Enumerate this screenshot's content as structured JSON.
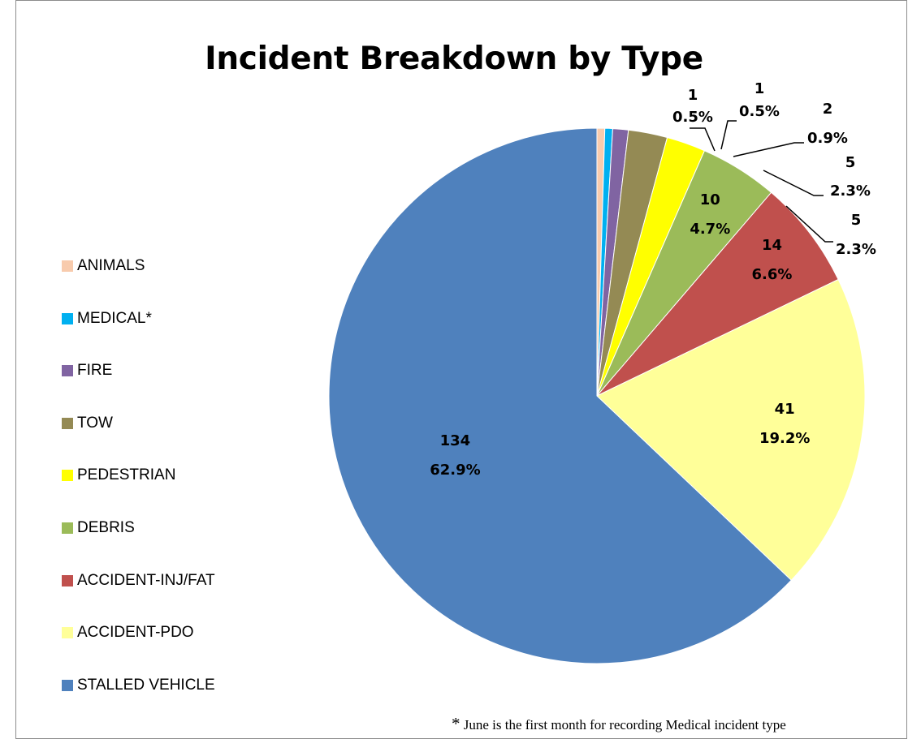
{
  "chart_data": {
    "type": "pie",
    "title": "Incident Breakdown by Type",
    "slices": [
      {
        "label": "ANIMALS",
        "value": 1,
        "percent": "0.5%",
        "color": "#F8CBAD"
      },
      {
        "label": "MEDICAL*",
        "value": 1,
        "percent": "0.5%",
        "color": "#00B0F0"
      },
      {
        "label": "FIRE",
        "value": 2,
        "percent": "0.9%",
        "color": "#8064A2"
      },
      {
        "label": "TOW",
        "value": 5,
        "percent": "2.3%",
        "color": "#948A54"
      },
      {
        "label": "PEDESTRIAN",
        "value": 5,
        "percent": "2.3%",
        "color": "#FFFF00"
      },
      {
        "label": "DEBRIS",
        "value": 10,
        "percent": "4.7%",
        "color": "#9BBB59"
      },
      {
        "label": "ACCIDENT-INJ/FAT",
        "value": 14,
        "percent": "6.6%",
        "color": "#C0504D"
      },
      {
        "label": "ACCIDENT-PDO",
        "value": 41,
        "percent": "19.2%",
        "color": "#FFFF99"
      },
      {
        "label": "STALLED VEHICLE",
        "value": 134,
        "percent": "62.9%",
        "color": "#4F81BD"
      }
    ],
    "legend_position": "left"
  },
  "footnote": {
    "star": "*",
    "text": " June is the first month for recording Medical incident type"
  }
}
